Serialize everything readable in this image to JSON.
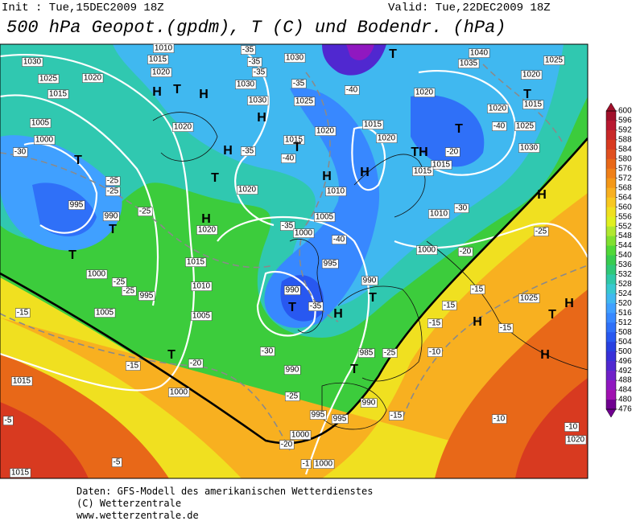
{
  "header": {
    "init": "Init : Tue,15DEC2009 18Z",
    "valid": "Valid: Tue,22DEC2009 18Z",
    "title": "500 hPa Geopot.(gpdm), T (C) und Bodendr. (hPa)"
  },
  "map": {
    "labels": [
      "1030",
      "1025",
      "1020",
      "1015",
      "1005",
      "1000",
      "-30",
      "T",
      "-25",
      "-25",
      "995",
      "990",
      "T",
      "-25",
      "T",
      "1000",
      "-25",
      "-25",
      "995",
      "1005",
      "-15",
      "1015",
      "-5",
      "-5",
      "1015",
      "T",
      "-20",
      "-15",
      "1000",
      "1010",
      "1015",
      "1020",
      "H",
      "T",
      "H",
      "-35",
      "-35",
      "-35",
      "1030",
      "-35",
      "1030",
      "1030",
      "H",
      "1025",
      "-40",
      "T",
      "1040",
      "1035",
      "1025",
      "1020",
      "T",
      "1015",
      "1020",
      "1020",
      "T",
      "-40",
      "1025",
      "1030",
      "-20",
      "TH",
      "1015",
      "1015",
      "1020",
      "1015",
      "H",
      "H",
      "1020",
      "1015",
      "T",
      "-40",
      "1020",
      "H",
      "-35",
      "T",
      "1020",
      "H",
      "1020",
      "1015",
      "1010",
      "1005",
      "1010",
      "1005",
      "-35",
      "1000",
      "-40",
      "995",
      "1010",
      "-30",
      "1000",
      "-20",
      "990",
      "T",
      "-35",
      "H",
      "990",
      "T",
      "-30",
      "985",
      "-25",
      "T",
      "990",
      "-25",
      "990",
      "995",
      "995",
      "1000",
      "-20",
      "-1",
      "1000",
      "H",
      "-25",
      "-15",
      "-15",
      "H",
      "-15",
      "1025",
      "T",
      "H",
      "-15",
      "-10",
      "H",
      "-15",
      "-10",
      "-10",
      "1020"
    ]
  },
  "colorbar": {
    "levels": [
      600,
      596,
      592,
      588,
      584,
      580,
      576,
      572,
      568,
      564,
      560,
      556,
      552,
      548,
      544,
      540,
      536,
      532,
      528,
      524,
      520,
      516,
      512,
      508,
      504,
      500,
      496,
      492,
      488,
      484,
      480,
      476
    ],
    "colors": [
      "#a0102a",
      "#b81830",
      "#c82828",
      "#d83a20",
      "#e05020",
      "#e86818",
      "#f08018",
      "#f49818",
      "#f8b020",
      "#f8c820",
      "#f0e020",
      "#e0f020",
      "#b0e830",
      "#80e030",
      "#50d838",
      "#38cc50",
      "#30c878",
      "#30c8a8",
      "#38c8d0",
      "#40b8f0",
      "#40a0ff",
      "#3888ff",
      "#2f70f8",
      "#2858f0",
      "#2840e0",
      "#3830d8",
      "#5028d0",
      "#7020c8",
      "#9018c0",
      "#a010b0",
      "#700090"
    ]
  },
  "footer": {
    "lines": [
      "Daten: GFS-Modell des amerikanischen Wetterdienstes",
      "(C) Wetterzentrale",
      "www.wetterzentrale.de"
    ]
  }
}
